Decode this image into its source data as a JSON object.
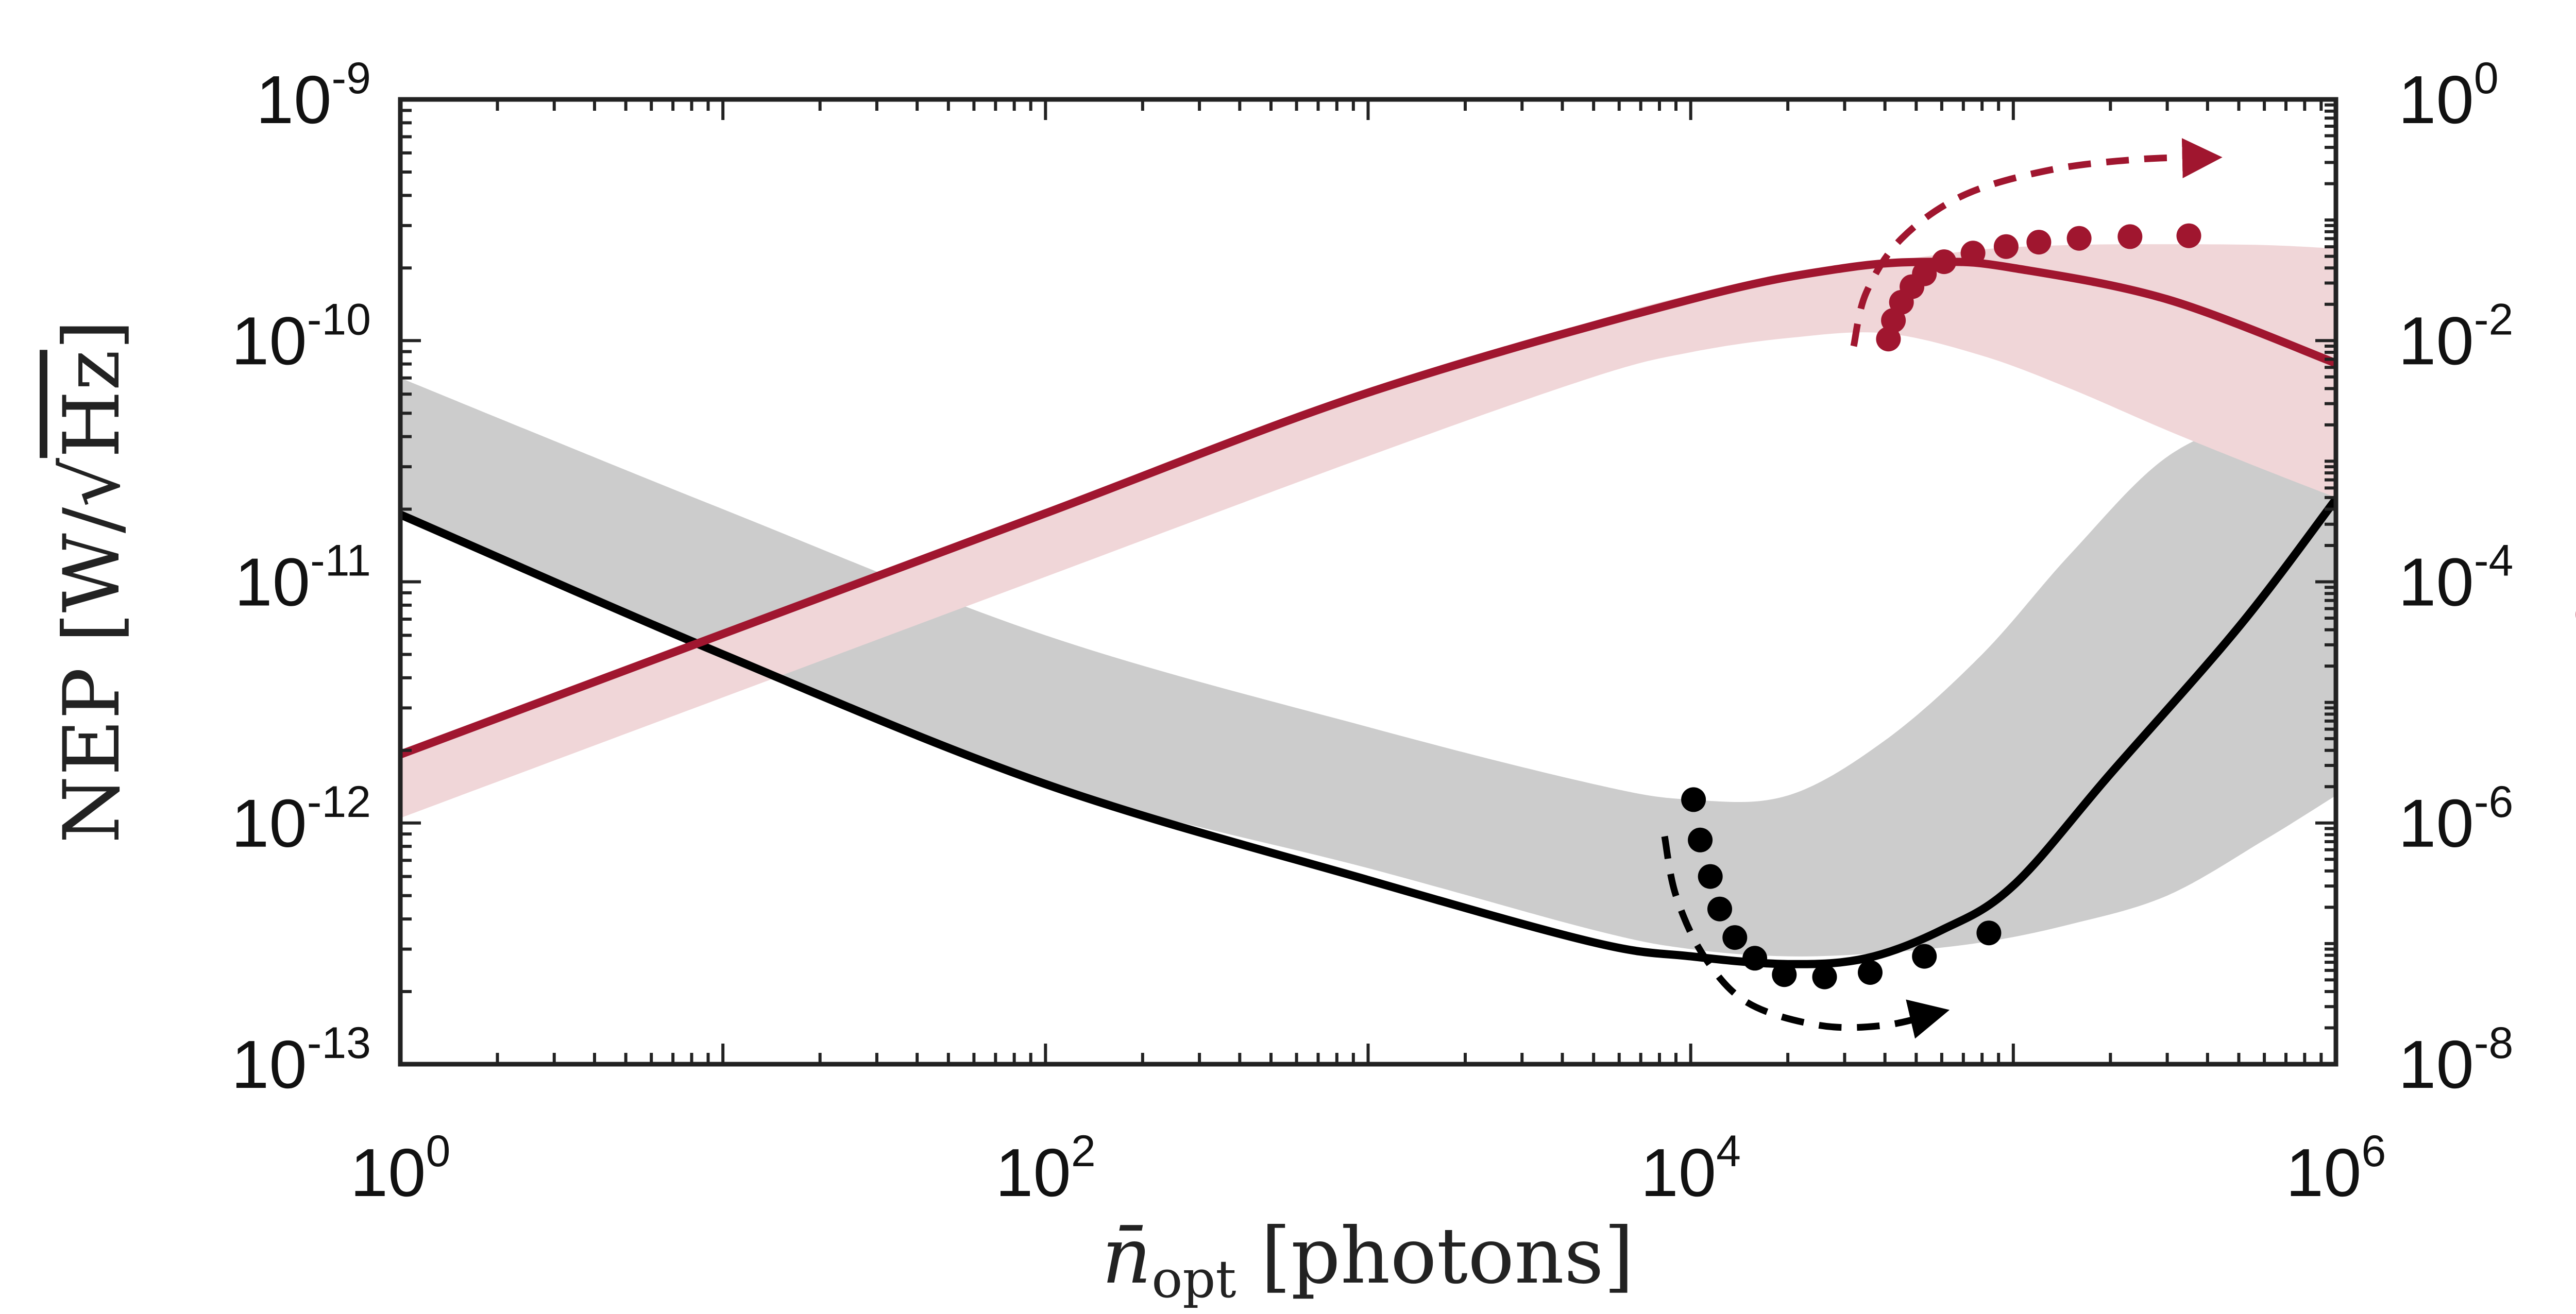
{
  "chart_data": {
    "type": "line",
    "title": "",
    "xlabel": "n̄opt [photons]",
    "xlabel_parts": {
      "base": "n̄",
      "sub": "opt",
      "rest": " [photons]"
    },
    "ylabel_left": "NEP [W/√Hz]",
    "ylabel_left_parts": {
      "pre": "NEP [W/",
      "sqrt": "√",
      "hz": "Hz",
      "post": "]"
    },
    "ylabel_right": "ηOM",
    "ylabel_right_parts": {
      "base": "η",
      "sub": "OM"
    },
    "xscale": "log",
    "xlim": [
      1,
      1000000
    ],
    "ylim_left": [
      1e-13,
      1e-09
    ],
    "ylim_right": [
      1e-08,
      1
    ],
    "x_ticks": [
      {
        "value": 1,
        "base": "10",
        "exp": "0"
      },
      {
        "value": 100,
        "base": "10",
        "exp": "2"
      },
      {
        "value": 10000,
        "base": "10",
        "exp": "4"
      },
      {
        "value": 1000000,
        "base": "10",
        "exp": "6"
      }
    ],
    "y_left_ticks": [
      {
        "value": 1e-09,
        "base": "10",
        "exp": "-9"
      },
      {
        "value": 1e-10,
        "base": "10",
        "exp": "-10"
      },
      {
        "value": 1e-11,
        "base": "10",
        "exp": "-11"
      },
      {
        "value": 1e-12,
        "base": "10",
        "exp": "-12"
      },
      {
        "value": 1e-13,
        "base": "10",
        "exp": "-13"
      }
    ],
    "y_right_ticks": [
      {
        "value": 1,
        "base": "10",
        "exp": "0"
      },
      {
        "value": 0.01,
        "base": "10",
        "exp": "-2"
      },
      {
        "value": 0.0001,
        "base": "10",
        "exp": "-4"
      },
      {
        "value": 1e-06,
        "base": "10",
        "exp": "-6"
      },
      {
        "value": 1e-08,
        "base": "10",
        "exp": "-8"
      }
    ],
    "colors": {
      "nep": "#000000",
      "nep_band": "#cccccc",
      "eta": "#a0162f",
      "eta_band": "#f0d6d8"
    },
    "series": [
      {
        "name": "NEP theory",
        "axis": "left",
        "kind": "line",
        "x": [
          1,
          10,
          100,
          1000,
          5000,
          10000,
          20000,
          35000,
          60000,
          100000,
          200000,
          500000,
          1000000
        ],
        "y": [
          1.9e-11,
          5e-12,
          1.45e-12,
          5.8e-13,
          3.2e-13,
          2.8e-13,
          2.6e-13,
          2.75e-13,
          3.6e-13,
          5.5e-13,
          1.6e-12,
          6.5e-12,
          2.2e-11
        ]
      },
      {
        "name": "NEP band",
        "axis": "left",
        "kind": "band",
        "x": [
          1,
          10,
          100,
          1000,
          5000,
          10000,
          20000,
          40000,
          80000,
          150000,
          300000,
          600000,
          1000000
        ],
        "lower": [
          1.9e-11,
          5e-12,
          1.45e-12,
          6.5e-13,
          3.6e-13,
          3e-13,
          2.8e-13,
          2.9e-13,
          3.2e-13,
          3.8e-13,
          5e-13,
          8.5e-13,
          1.3e-12
        ],
        "upper": [
          7e-11,
          2e-11,
          6e-12,
          2.5e-12,
          1.45e-12,
          1.25e-12,
          1.3e-12,
          2.2e-12,
          5e-12,
          1.3e-11,
          3.3e-11,
          4.8e-11,
          4.8e-11
        ]
      },
      {
        "name": "NEP measured",
        "axis": "left",
        "kind": "scatter",
        "x": [
          10200,
          10700,
          11500,
          12300,
          13700,
          15800,
          19500,
          26000,
          36000,
          53000,
          84000
        ],
        "y": [
          1.25e-12,
          8.5e-13,
          6e-13,
          4.4e-13,
          3.35e-13,
          2.75e-13,
          2.35e-13,
          2.3e-13,
          2.4e-13,
          2.8e-13,
          3.5e-13
        ]
      },
      {
        "name": "ηOM theory",
        "axis": "right",
        "kind": "line",
        "x": [
          1,
          10,
          100,
          1000,
          10000,
          30000,
          60000,
          100000,
          300000,
          1000000
        ],
        "y": [
          3.7e-06,
          3.7e-05,
          0.00037,
          0.0037,
          0.022,
          0.04,
          0.045,
          0.04,
          0.022,
          0.0065
        ]
      },
      {
        "name": "ηOM band",
        "axis": "right",
        "kind": "band",
        "x": [
          1,
          10,
          100,
          1000,
          5000,
          10000,
          20000,
          40000,
          80000,
          150000,
          300000,
          600000,
          1000000
        ],
        "lower": [
          1.1e-06,
          1.1e-05,
          0.00011,
          0.0011,
          0.005,
          0.008,
          0.0105,
          0.0115,
          0.0075,
          0.004,
          0.0018,
          0.00085,
          0.0005
        ],
        "upper": [
          3.7e-06,
          3.7e-05,
          0.00037,
          0.0037,
          0.0145,
          0.024,
          0.036,
          0.045,
          0.057,
          0.062,
          0.063,
          0.062,
          0.058
        ]
      },
      {
        "name": "ηOM measured",
        "axis": "right",
        "kind": "scatter",
        "x": [
          41000,
          42500,
          45000,
          48500,
          53000,
          61000,
          75000,
          95000,
          120000,
          160000,
          230000,
          350000
        ],
        "y": [
          0.0103,
          0.0147,
          0.0208,
          0.028,
          0.0358,
          0.0451,
          0.0532,
          0.0602,
          0.0655,
          0.0705,
          0.0728,
          0.074
        ]
      }
    ],
    "arrows": [
      {
        "name": "NEP arrow",
        "axis": "left",
        "x": [
          8300,
          9000,
          11000,
          15000,
          25000,
          40000,
          60000
        ],
        "y": [
          8.8e-13,
          5e-13,
          2.8e-13,
          1.8e-13,
          1.45e-13,
          1.45e-13,
          1.65e-13
        ]
      },
      {
        "name": "ηOM arrow",
        "axis": "right",
        "x": [
          32000,
          35000,
          45000,
          70000,
          130000,
          250000,
          420000
        ],
        "y": [
          0.009,
          0.025,
          0.07,
          0.16,
          0.26,
          0.32,
          0.33
        ]
      }
    ]
  }
}
